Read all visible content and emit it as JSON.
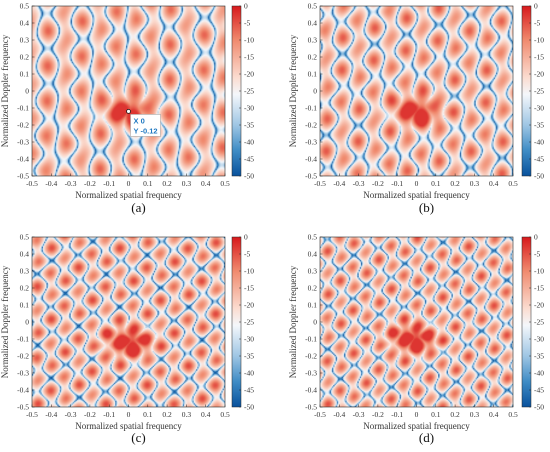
{
  "chart_data": [
    {
      "type": "heatmap",
      "panel_label": "(a)",
      "xlabel": "Normalized spatial frequency",
      "ylabel": "Normalized Doppler frequency",
      "xlim": [
        -0.5,
        0.5
      ],
      "ylim": [
        -0.5,
        0.5
      ],
      "x_ticks": [
        "-0.5",
        "-0.4",
        "-0.3",
        "-0.2",
        "-0.1",
        "0",
        "0.1",
        "0.2",
        "0.3",
        "0.4",
        "0.5"
      ],
      "y_ticks": [
        "-0.5",
        "-0.4",
        "-0.3",
        "-0.2",
        "-0.1",
        "0",
        "0.1",
        "0.2",
        "0.3",
        "0.4",
        "0.5"
      ],
      "colorbar": {
        "range": [
          -50,
          0
        ],
        "ticks": [
          "0",
          "-5",
          "-10",
          "-15",
          "-20",
          "-25",
          "-30",
          "-35",
          "-40",
          "-45",
          "-50"
        ]
      },
      "peak": {
        "x": 0,
        "y": -0.12,
        "db": 0
      },
      "datatip": {
        "x_text": "X 0",
        "y_text": "Y -0.12",
        "x": 0,
        "y": -0.12
      },
      "pattern": {
        "slope": 0.35,
        "offset": -0.03,
        "freq_axis": 11.0,
        "freq_trend": 4.5,
        "ripple": 0.65
      }
    },
    {
      "type": "heatmap",
      "panel_label": "(b)",
      "xlabel": "Normalized spatial frequency",
      "ylabel": "Normalized Doppler frequency",
      "xlim": [
        -0.5,
        0.5
      ],
      "ylim": [
        -0.5,
        0.5
      ],
      "x_ticks": [
        "-0.5",
        "-0.4",
        "-0.3",
        "-0.2",
        "-0.1",
        "0",
        "0.1",
        "0.2",
        "0.3",
        "0.4",
        "0.5"
      ],
      "y_ticks": [
        "-0.5",
        "-0.4",
        "-0.3",
        "-0.2",
        "-0.1",
        "0",
        "0.1",
        "0.2",
        "0.3",
        "0.4",
        "0.5"
      ],
      "colorbar": {
        "range": [
          -50,
          0
        ],
        "ticks": [
          "0",
          "-5",
          "-10",
          "-15",
          "-20",
          "-25",
          "-30",
          "-35",
          "-40",
          "-45",
          "-50"
        ]
      },
      "peak": {
        "x": 0,
        "y": -0.12,
        "db": 0
      },
      "pattern": {
        "slope": 0.35,
        "offset": -0.03,
        "freq_axis": 12.0,
        "freq_trend": 5.0,
        "ripple": 0.75
      }
    },
    {
      "type": "heatmap",
      "panel_label": "(c)",
      "xlabel": "Normalized spatial frequency",
      "ylabel": "Normalized Doppler frequency",
      "xlim": [
        -0.5,
        0.5
      ],
      "ylim": [
        -0.5,
        0.5
      ],
      "x_ticks": [
        "-0.5",
        "-0.4",
        "-0.3",
        "-0.2",
        "-0.1",
        "0",
        "0.1",
        "0.2",
        "0.3",
        "0.4",
        "0.5"
      ],
      "y_ticks": [
        "-0.5",
        "-0.4",
        "-0.3",
        "-0.2",
        "-0.1",
        "0",
        "0.1",
        "0.2",
        "0.3",
        "0.4",
        "0.5"
      ],
      "colorbar": {
        "range": [
          -50,
          0
        ],
        "ticks": [
          "0",
          "-5",
          "-10",
          "-15",
          "-20",
          "-25",
          "-30",
          "-35",
          "-40",
          "-45",
          "-50"
        ]
      },
      "peak": {
        "x": 0,
        "y": -0.12,
        "db": 0
      },
      "pattern": {
        "slope": 0.2,
        "offset": -0.06,
        "freq_axis": 14.0,
        "freq_trend": 6.5,
        "ripple": 0.9
      }
    },
    {
      "type": "heatmap",
      "panel_label": "(d)",
      "xlabel": "Normalized spatial frequency",
      "ylabel": "Normalized Doppler frequency",
      "xlim": [
        -0.5,
        0.5
      ],
      "ylim": [
        -0.5,
        0.5
      ],
      "x_ticks": [
        "-0.5",
        "-0.4",
        "-0.3",
        "-0.2",
        "-0.1",
        "0",
        "0.1",
        "0.2",
        "0.3",
        "0.4",
        "0.5"
      ],
      "y_ticks": [
        "-0.5",
        "-0.4",
        "-0.3",
        "-0.2",
        "-0.1",
        "0",
        "0.1",
        "0.2",
        "0.3",
        "0.4",
        "0.5"
      ],
      "colorbar": {
        "range": [
          -50,
          0
        ],
        "ticks": [
          "0",
          "-5",
          "-10",
          "-15",
          "-20",
          "-25",
          "-30",
          "-35",
          "-40",
          "-45",
          "-50"
        ]
      },
      "peak": {
        "x": -0.02,
        "y": -0.1,
        "db": 0
      },
      "pattern": {
        "slope": 0.3,
        "offset": -0.04,
        "freq_axis": 15.0,
        "freq_trend": 7.0,
        "ripple": 0.85
      }
    }
  ]
}
